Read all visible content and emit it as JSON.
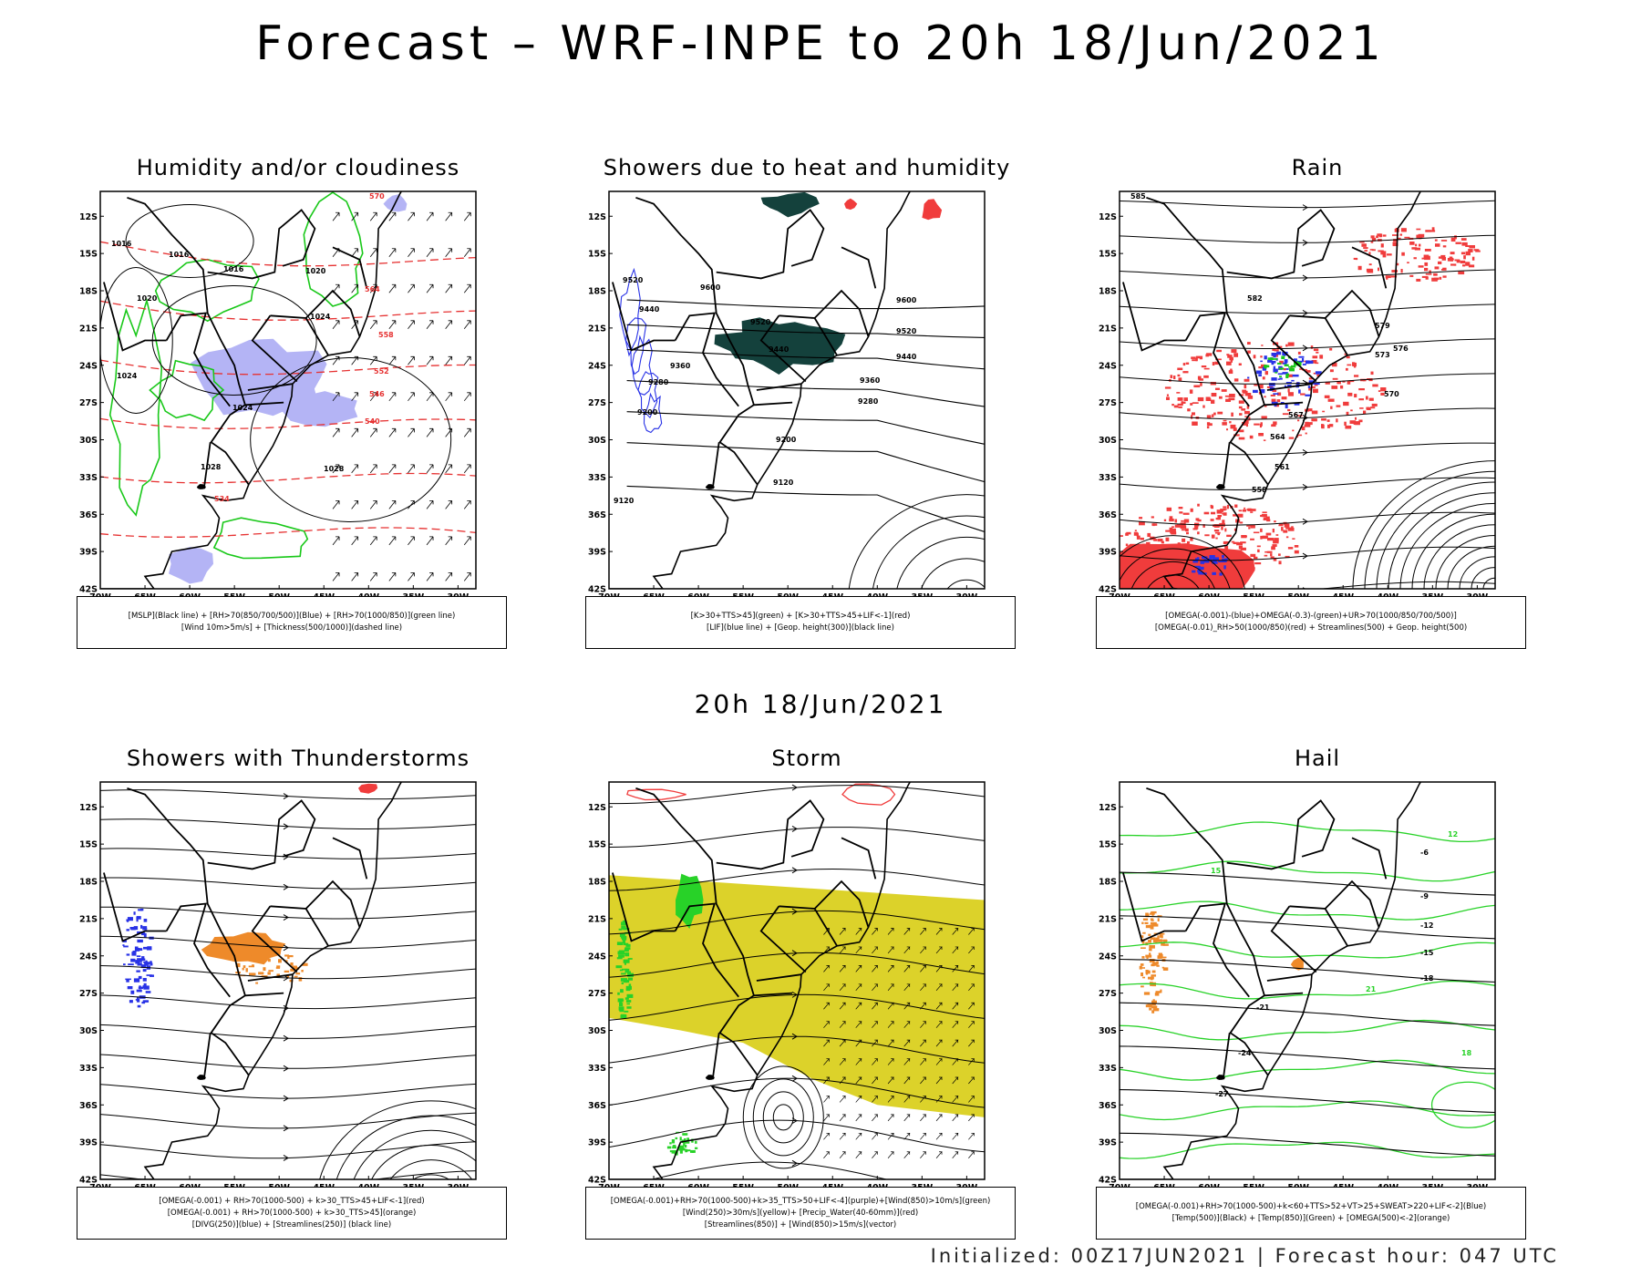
{
  "title": "Forecast – WRF-INPE to 20h 18/Jun/2021",
  "middle_title": "20h 18/Jun/2021",
  "footer": "Initialized: 00Z17JUN2021 | Forecast hour: 047 UTC",
  "axes": {
    "lat_labels": [
      "12S",
      "15S",
      "18S",
      "21S",
      "24S",
      "27S",
      "30S",
      "33S",
      "36S",
      "39S",
      "42S"
    ],
    "lon_labels": [
      "70W",
      "65W",
      "60W",
      "55W",
      "50W",
      "45W",
      "40W",
      "35W",
      "30W"
    ]
  },
  "panels": [
    {
      "title": "Humidity and/or cloudiness",
      "legend": [
        "[MSLP](Black line) + [RH>70(850/700/500)](Blue) + [RH>70(1000/850)](green line)",
        "[Wind 10m>5m/s] + [Thickness(500/1000)](dashed line)"
      ],
      "contour_labels": [
        "1016",
        "1016",
        "1016",
        "1020",
        "1020",
        "1024",
        "1024",
        "1024",
        "1028",
        "1028",
        "570",
        "564",
        "558",
        "552",
        "546",
        "540",
        "534"
      ]
    },
    {
      "title": "Showers due to heat and humidity",
      "legend": [
        "[K>30+TTS>45](green) + [K>30+TTS>45+LIF<-1](red)",
        "[LIF](blue line) + [Geop. height(300)](black line)"
      ],
      "contour_labels": [
        "9600",
        "9600",
        "9520",
        "9520",
        "9520",
        "9440",
        "9440",
        "9440",
        "9360",
        "9360",
        "9280",
        "9280",
        "9200",
        "9200",
        "9120",
        "9120"
      ]
    },
    {
      "title": "Rain",
      "legend": [
        "[OMEGA(-0.001)-(blue)+OMEGA(-0.3)-(green)+UR>70(1000/850/700/500)]",
        "[OMEGA(-0.01)_RH>50(1000/850)(red) + Streamlines(500) + Geop. height(500)"
      ],
      "contour_labels": [
        "585",
        "582",
        "579",
        "576",
        "573",
        "570",
        "567",
        "564",
        "561",
        "558"
      ]
    },
    {
      "title": "Showers with Thunderstorms",
      "legend": [
        "[OMEGA(-0.001) + RH>70(1000-500) + k>30_TTS>45+LIF<-1](red)",
        "[OMEGA(-0.001) + RH>70(1000-500) + k>30_TTS>45](orange)",
        "[DIVG(250)](blue) + [Streamlines(250)] (black line)"
      ],
      "contour_labels": []
    },
    {
      "title": "Storm",
      "legend": [
        "[OMEGA(-0.001)+RH>70(1000-500)+k>35_TTS>50+LIF<-4](purple)+[Wind(850)>10m/s](green)",
        "[Wind(250)>30m/s](yellow)+ [Precip_Water(40-60mm)](red)",
        "[Streamlines(850)] + [Wind(850)>15m/s](vector)"
      ],
      "contour_labels": []
    },
    {
      "title": "Hail",
      "legend": [
        "[OMEGA(-0.001)+RH>70(1000-500)+k<60+TTS>52+VT>25+SWEAT>220+LIF<-2](Blue)",
        "[Temp(500)](Black) + [Temp(850)](Green) + [OMEGA(500)<-2](orange)"
      ],
      "contour_labels": [
        "-6",
        "-9",
        "-12",
        "-15",
        "-18",
        "-21",
        "-24",
        "-27",
        "15",
        "12",
        "21",
        "18"
      ]
    }
  ],
  "colors": {
    "mslp": "#000000",
    "rh_high": "#b4b4f5",
    "rh_low": "#19c819",
    "thickness": "#e63232",
    "geopotential": "#000000",
    "lif": "#2832e6",
    "rain_red": "#f03c3c",
    "orange": "#ee8a2a",
    "dark_teal": "#14413c",
    "yellow": "#dcd22a",
    "green": "#28d228"
  }
}
